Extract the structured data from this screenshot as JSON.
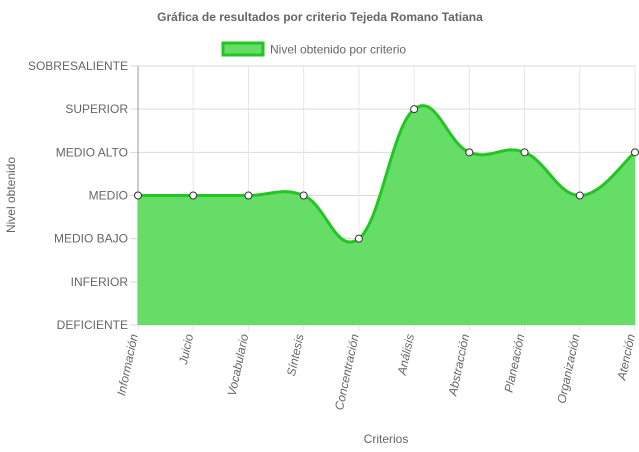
{
  "chart_data": {
    "type": "area",
    "title": "Gráfica de resultados por criterio Tejeda Romano Tatiana",
    "xlabel": "Criterios",
    "ylabel": "Nivel obtenido",
    "y_levels": [
      "DEFICIENTE",
      "INFERIOR",
      "MEDIO BAJO",
      "MEDIO",
      "MEDIO ALTO",
      "SUPERIOR",
      "SOBRESALIENTE"
    ],
    "ylim": [
      0,
      6
    ],
    "categories": [
      "Información",
      "Juicio",
      "Vocabulario",
      "Síntesis",
      "Concentración",
      "Análisis",
      "Abstracción",
      "Planeación",
      "Organización",
      "Atención"
    ],
    "series": [
      {
        "name": "Nivel obtenido por criterio",
        "values": [
          3,
          3,
          3,
          3,
          2,
          5,
          4,
          4,
          3,
          4
        ],
        "value_labels": [
          "MEDIO",
          "MEDIO",
          "MEDIO",
          "MEDIO",
          "MEDIO BAJO",
          "SUPERIOR",
          "MEDIO ALTO",
          "MEDIO ALTO",
          "MEDIO",
          "MEDIO ALTO"
        ],
        "line_color": "#22c522",
        "fill_color": "#66dd66"
      }
    ],
    "grid": true,
    "legend_position": "top",
    "smooth": true
  }
}
